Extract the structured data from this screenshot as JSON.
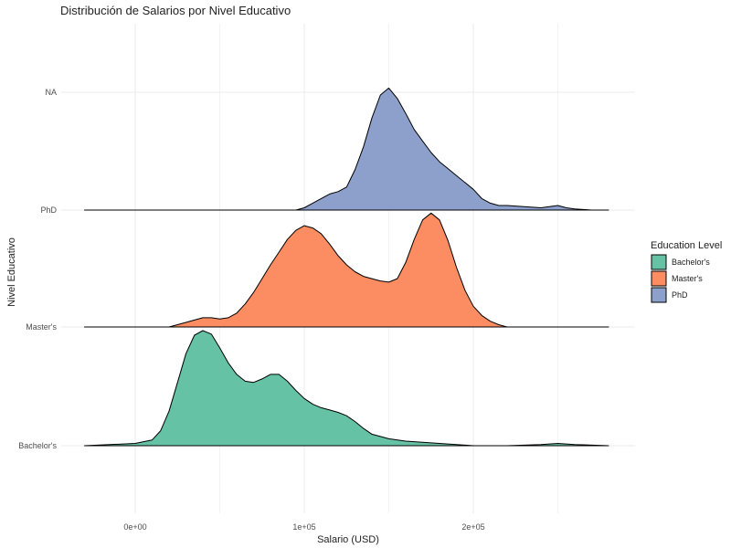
{
  "chart_data": {
    "type": "ridgeline",
    "title": "Distribución de Salarios por Nivel Educativo",
    "xlabel": "Salario (USD)",
    "ylabel": "Nivel Educativo",
    "xlim": [
      -30000,
      280000
    ],
    "x_ticks": [
      {
        "value": 0,
        "label": "0e+00"
      },
      {
        "value": 100000,
        "label": "1e+05"
      },
      {
        "value": 200000,
        "label": "2e+05"
      }
    ],
    "y_categories": [
      "Bachelor's",
      "Master's",
      "PhD",
      "NA"
    ],
    "grid": true,
    "legend": {
      "title": "Education Level",
      "position": "right",
      "entries": [
        {
          "label": "Bachelor's",
          "color": "#66c2a5"
        },
        {
          "label": "Master's",
          "color": "#fc8d62"
        },
        {
          "label": "PhD",
          "color": "#8da0cb"
        }
      ]
    },
    "series": [
      {
        "name": "Bachelor's",
        "color": "#66c2a5",
        "baseline_category": "Bachelor's",
        "x": [
          -30000,
          0,
          10000,
          15000,
          20000,
          25000,
          30000,
          35000,
          40000,
          45000,
          50000,
          55000,
          60000,
          65000,
          70000,
          75000,
          80000,
          85000,
          90000,
          95000,
          100000,
          105000,
          110000,
          115000,
          120000,
          125000,
          130000,
          135000,
          140000,
          145000,
          150000,
          160000,
          170000,
          180000,
          190000,
          200000,
          220000,
          240000,
          250000,
          260000,
          280000
        ],
        "density": [
          0.0,
          0.02,
          0.05,
          0.13,
          0.3,
          0.55,
          0.8,
          0.96,
          1.0,
          0.97,
          0.85,
          0.72,
          0.62,
          0.56,
          0.55,
          0.58,
          0.62,
          0.62,
          0.56,
          0.48,
          0.41,
          0.36,
          0.33,
          0.31,
          0.29,
          0.26,
          0.21,
          0.15,
          0.1,
          0.08,
          0.06,
          0.04,
          0.03,
          0.02,
          0.01,
          0.0,
          0.0,
          0.01,
          0.02,
          0.01,
          0.0
        ]
      },
      {
        "name": "Master's",
        "color": "#fc8d62",
        "baseline_category": "Master's",
        "x": [
          -30000,
          0,
          20000,
          25000,
          30000,
          35000,
          40000,
          45000,
          50000,
          55000,
          60000,
          65000,
          70000,
          75000,
          80000,
          85000,
          90000,
          95000,
          100000,
          105000,
          110000,
          115000,
          120000,
          125000,
          130000,
          135000,
          140000,
          145000,
          150000,
          155000,
          160000,
          165000,
          170000,
          175000,
          180000,
          185000,
          190000,
          195000,
          200000,
          205000,
          210000,
          215000,
          220000,
          240000,
          260000,
          280000
        ],
        "density": [
          0.0,
          0.0,
          0.0,
          0.02,
          0.04,
          0.06,
          0.08,
          0.08,
          0.07,
          0.08,
          0.12,
          0.2,
          0.3,
          0.42,
          0.54,
          0.65,
          0.76,
          0.84,
          0.88,
          0.86,
          0.81,
          0.72,
          0.62,
          0.54,
          0.48,
          0.44,
          0.42,
          0.4,
          0.39,
          0.42,
          0.56,
          0.76,
          0.93,
          0.99,
          0.93,
          0.75,
          0.52,
          0.32,
          0.18,
          0.1,
          0.05,
          0.02,
          0.0,
          0.0,
          0.0,
          0.0
        ]
      },
      {
        "name": "PhD",
        "color": "#8da0cb",
        "baseline_category": "PhD",
        "x": [
          -30000,
          0,
          50000,
          90000,
          95000,
          100000,
          105000,
          110000,
          115000,
          120000,
          125000,
          130000,
          135000,
          140000,
          145000,
          150000,
          155000,
          160000,
          165000,
          170000,
          175000,
          180000,
          185000,
          190000,
          195000,
          200000,
          205000,
          210000,
          215000,
          220000,
          230000,
          240000,
          250000,
          255000,
          260000,
          270000,
          280000
        ],
        "density": [
          0.0,
          0.0,
          0.0,
          0.0,
          0.0,
          0.02,
          0.06,
          0.1,
          0.14,
          0.16,
          0.2,
          0.35,
          0.55,
          0.8,
          1.0,
          1.06,
          0.97,
          0.84,
          0.7,
          0.6,
          0.5,
          0.42,
          0.36,
          0.3,
          0.24,
          0.18,
          0.1,
          0.06,
          0.04,
          0.04,
          0.03,
          0.02,
          0.04,
          0.02,
          0.01,
          0.0,
          0.0
        ]
      }
    ]
  }
}
